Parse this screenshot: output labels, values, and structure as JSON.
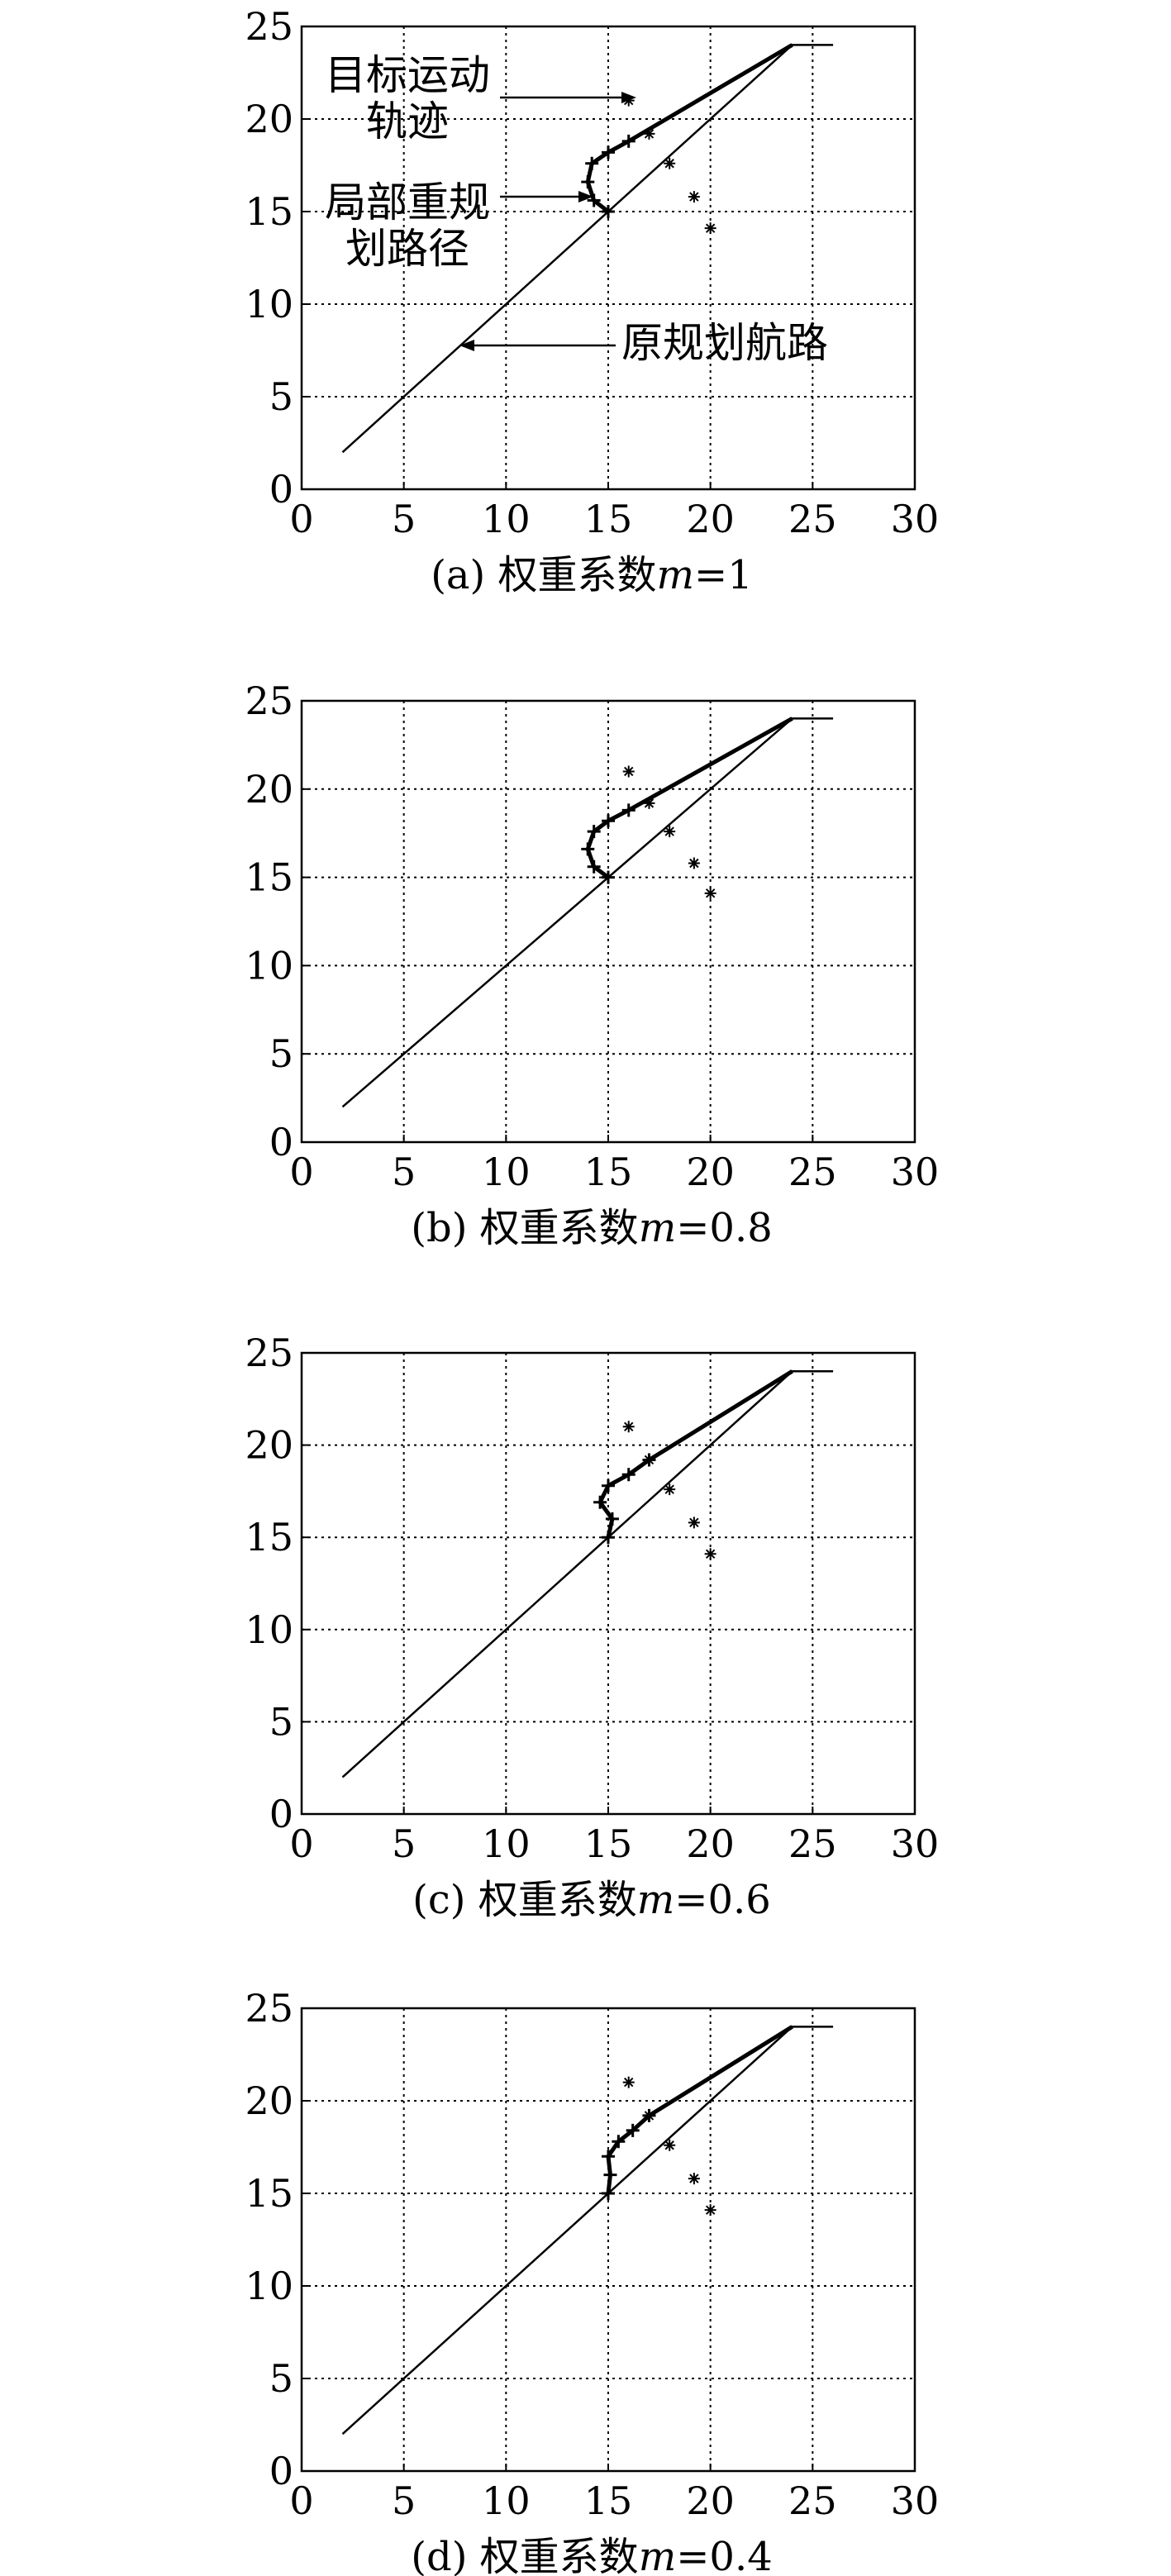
{
  "chart_data": [
    {
      "type": "line",
      "caption_prefix": "(a) 权重系数",
      "caption_var": "m",
      "caption_suffix": "=1",
      "xlim": [
        0,
        30
      ],
      "ylim": [
        0,
        25
      ],
      "xticks": [
        0,
        5,
        10,
        15,
        20,
        25,
        30
      ],
      "yticks": [
        0,
        5,
        10,
        15,
        20,
        25
      ],
      "grid": true,
      "annotations": [
        {
          "lines": [
            "目标运动",
            "轨迹"
          ]
        },
        {
          "lines": [
            "局部重规",
            "划路径"
          ]
        },
        {
          "lines": [
            "原规划航路"
          ]
        }
      ],
      "series": [
        {
          "role": "original",
          "points": [
            [
              2,
              2
            ],
            [
              24,
              24
            ],
            [
              26,
              24
            ]
          ]
        },
        {
          "role": "replan",
          "points": [
            [
              15,
              15
            ],
            [
              14.3,
              15.6
            ],
            [
              14,
              16.6
            ],
            [
              14.2,
              17.6
            ],
            [
              15,
              18.2
            ],
            [
              16,
              18.8
            ],
            [
              24,
              24
            ]
          ]
        },
        {
          "role": "target",
          "points": [
            [
              16,
              21
            ],
            [
              17,
              19.2
            ],
            [
              18,
              17.6
            ],
            [
              19.2,
              15.8
            ],
            [
              20,
              14.1
            ]
          ]
        }
      ]
    },
    {
      "type": "line",
      "caption_prefix": "(b) 权重系数",
      "caption_var": "m",
      "caption_suffix": "=0.8",
      "xlim": [
        0,
        30
      ],
      "ylim": [
        0,
        25
      ],
      "xticks": [
        0,
        5,
        10,
        15,
        20,
        25,
        30
      ],
      "yticks": [
        0,
        5,
        10,
        15,
        20,
        25
      ],
      "grid": true,
      "annotations": [],
      "series": [
        {
          "role": "original",
          "points": [
            [
              2,
              2
            ],
            [
              24,
              24
            ],
            [
              26,
              24
            ]
          ]
        },
        {
          "role": "replan",
          "points": [
            [
              15,
              15
            ],
            [
              14.3,
              15.6
            ],
            [
              14,
              16.6
            ],
            [
              14.3,
              17.6
            ],
            [
              15,
              18.2
            ],
            [
              16,
              18.8
            ],
            [
              24,
              24
            ]
          ]
        },
        {
          "role": "target",
          "points": [
            [
              16,
              21
            ],
            [
              17,
              19.2
            ],
            [
              18,
              17.6
            ],
            [
              19.2,
              15.8
            ],
            [
              20,
              14.1
            ]
          ]
        }
      ]
    },
    {
      "type": "line",
      "caption_prefix": "(c) 权重系数",
      "caption_var": "m",
      "caption_suffix": "=0.6",
      "xlim": [
        0,
        30
      ],
      "ylim": [
        0,
        25
      ],
      "xticks": [
        0,
        5,
        10,
        15,
        20,
        25,
        30
      ],
      "yticks": [
        0,
        5,
        10,
        15,
        20,
        25
      ],
      "grid": true,
      "annotations": [],
      "series": [
        {
          "role": "original",
          "points": [
            [
              2,
              2
            ],
            [
              24,
              24
            ],
            [
              26,
              24
            ]
          ]
        },
        {
          "role": "replan",
          "points": [
            [
              15,
              15
            ],
            [
              15.2,
              16
            ],
            [
              14.6,
              16.9
            ],
            [
              15,
              17.8
            ],
            [
              16,
              18.4
            ],
            [
              17,
              19.2
            ],
            [
              24,
              24
            ]
          ]
        },
        {
          "role": "target",
          "points": [
            [
              16,
              21
            ],
            [
              17,
              19.2
            ],
            [
              18,
              17.6
            ],
            [
              19.2,
              15.8
            ],
            [
              20,
              14.1
            ]
          ]
        }
      ]
    },
    {
      "type": "line",
      "caption_prefix": "(d) 权重系数",
      "caption_var": "m",
      "caption_suffix": "=0.4",
      "xlim": [
        0,
        30
      ],
      "ylim": [
        0,
        25
      ],
      "xticks": [
        0,
        5,
        10,
        15,
        20,
        25,
        30
      ],
      "yticks": [
        0,
        5,
        10,
        15,
        20,
        25
      ],
      "grid": true,
      "annotations": [],
      "series": [
        {
          "role": "original",
          "points": [
            [
              2,
              2
            ],
            [
              24,
              24
            ],
            [
              26,
              24
            ]
          ]
        },
        {
          "role": "replan",
          "points": [
            [
              15,
              15
            ],
            [
              15.1,
              16
            ],
            [
              15,
              17
            ],
            [
              15.5,
              17.8
            ],
            [
              16.2,
              18.4
            ],
            [
              17,
              19.2
            ],
            [
              24,
              24
            ]
          ]
        },
        {
          "role": "target",
          "points": [
            [
              16,
              21
            ],
            [
              17,
              19.2
            ],
            [
              18,
              17.6
            ],
            [
              19.2,
              15.8
            ],
            [
              20,
              14.1
            ]
          ]
        }
      ]
    }
  ]
}
